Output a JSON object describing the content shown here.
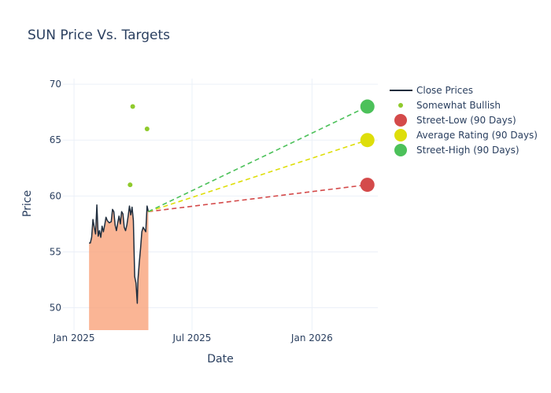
{
  "chart_data": {
    "type": "line",
    "title": "SUN Price Vs. Targets",
    "xlabel": "Date",
    "ylabel": "Price",
    "x_range": [
      "2024-12-15",
      "2026-04-12"
    ],
    "ylim": [
      48,
      70.5
    ],
    "grid": true,
    "legend_position": "top-right",
    "x_ticks": [
      {
        "date": "2025-01-01",
        "label": "Jan 2025"
      },
      {
        "date": "2025-07-01",
        "label": "Jul 2025"
      },
      {
        "date": "2026-01-01",
        "label": "Jan 2026"
      }
    ],
    "y_ticks": [
      50,
      55,
      60,
      65,
      70
    ],
    "series": [
      {
        "name": "Close Prices",
        "kind": "line",
        "color": "#1f2d3d",
        "fill_color": "#f9a37a",
        "points": [
          [
            "2025-01-24",
            55.8
          ],
          [
            "2025-01-26",
            55.8
          ],
          [
            "2025-01-28",
            56.3
          ],
          [
            "2025-01-30",
            57.9
          ],
          [
            "2025-02-01",
            57.2
          ],
          [
            "2025-02-03",
            56.6
          ],
          [
            "2025-02-05",
            59.2
          ],
          [
            "2025-02-07",
            56.4
          ],
          [
            "2025-02-09",
            56.9
          ],
          [
            "2025-02-11",
            56.3
          ],
          [
            "2025-02-13",
            57.3
          ],
          [
            "2025-02-15",
            56.8
          ],
          [
            "2025-02-17",
            57.4
          ],
          [
            "2025-02-19",
            58.1
          ],
          [
            "2025-02-21",
            57.8
          ],
          [
            "2025-02-24",
            57.6
          ],
          [
            "2025-02-27",
            57.7
          ],
          [
            "2025-03-01",
            58.8
          ],
          [
            "2025-03-03",
            58.6
          ],
          [
            "2025-03-05",
            57.4
          ],
          [
            "2025-03-07",
            56.9
          ],
          [
            "2025-03-09",
            57.6
          ],
          [
            "2025-03-11",
            58.2
          ],
          [
            "2025-03-13",
            57.5
          ],
          [
            "2025-03-15",
            58.6
          ],
          [
            "2025-03-17",
            58.4
          ],
          [
            "2025-03-19",
            57.2
          ],
          [
            "2025-03-21",
            56.9
          ],
          [
            "2025-03-23",
            57.4
          ],
          [
            "2025-03-25",
            58.2
          ],
          [
            "2025-03-27",
            59.1
          ],
          [
            "2025-03-29",
            58.3
          ],
          [
            "2025-03-31",
            59.0
          ],
          [
            "2025-04-02",
            57.8
          ],
          [
            "2025-04-04",
            52.8
          ],
          [
            "2025-04-06",
            52.2
          ],
          [
            "2025-04-08",
            50.4
          ],
          [
            "2025-04-09",
            52.5
          ],
          [
            "2025-04-11",
            54.0
          ],
          [
            "2025-04-13",
            55.3
          ],
          [
            "2025-04-15",
            56.8
          ],
          [
            "2025-04-17",
            57.2
          ],
          [
            "2025-04-19",
            57.0
          ],
          [
            "2025-04-21",
            56.8
          ],
          [
            "2025-04-23",
            59.1
          ],
          [
            "2025-04-25",
            58.6
          ]
        ]
      },
      {
        "name": "Somewhat Bullish",
        "kind": "markers",
        "color": "#8fca2c",
        "points": [
          [
            "2025-03-28",
            61
          ],
          [
            "2025-04-01",
            68
          ],
          [
            "2025-04-23",
            66
          ]
        ]
      },
      {
        "name": "Street-Low (90 Days)",
        "kind": "target",
        "color": "#d44a4a",
        "from": [
          "2025-04-25",
          58.6
        ],
        "to": [
          "2026-03-27",
          61
        ]
      },
      {
        "name": "Average Rating (90 Days)",
        "kind": "target",
        "color": "#dede0a",
        "from": [
          "2025-04-25",
          58.6
        ],
        "to": [
          "2026-03-27",
          65
        ]
      },
      {
        "name": "Street-High (90 Days)",
        "kind": "target",
        "color": "#4cc15a",
        "from": [
          "2025-04-25",
          58.6
        ],
        "to": [
          "2026-03-27",
          68
        ]
      }
    ]
  }
}
